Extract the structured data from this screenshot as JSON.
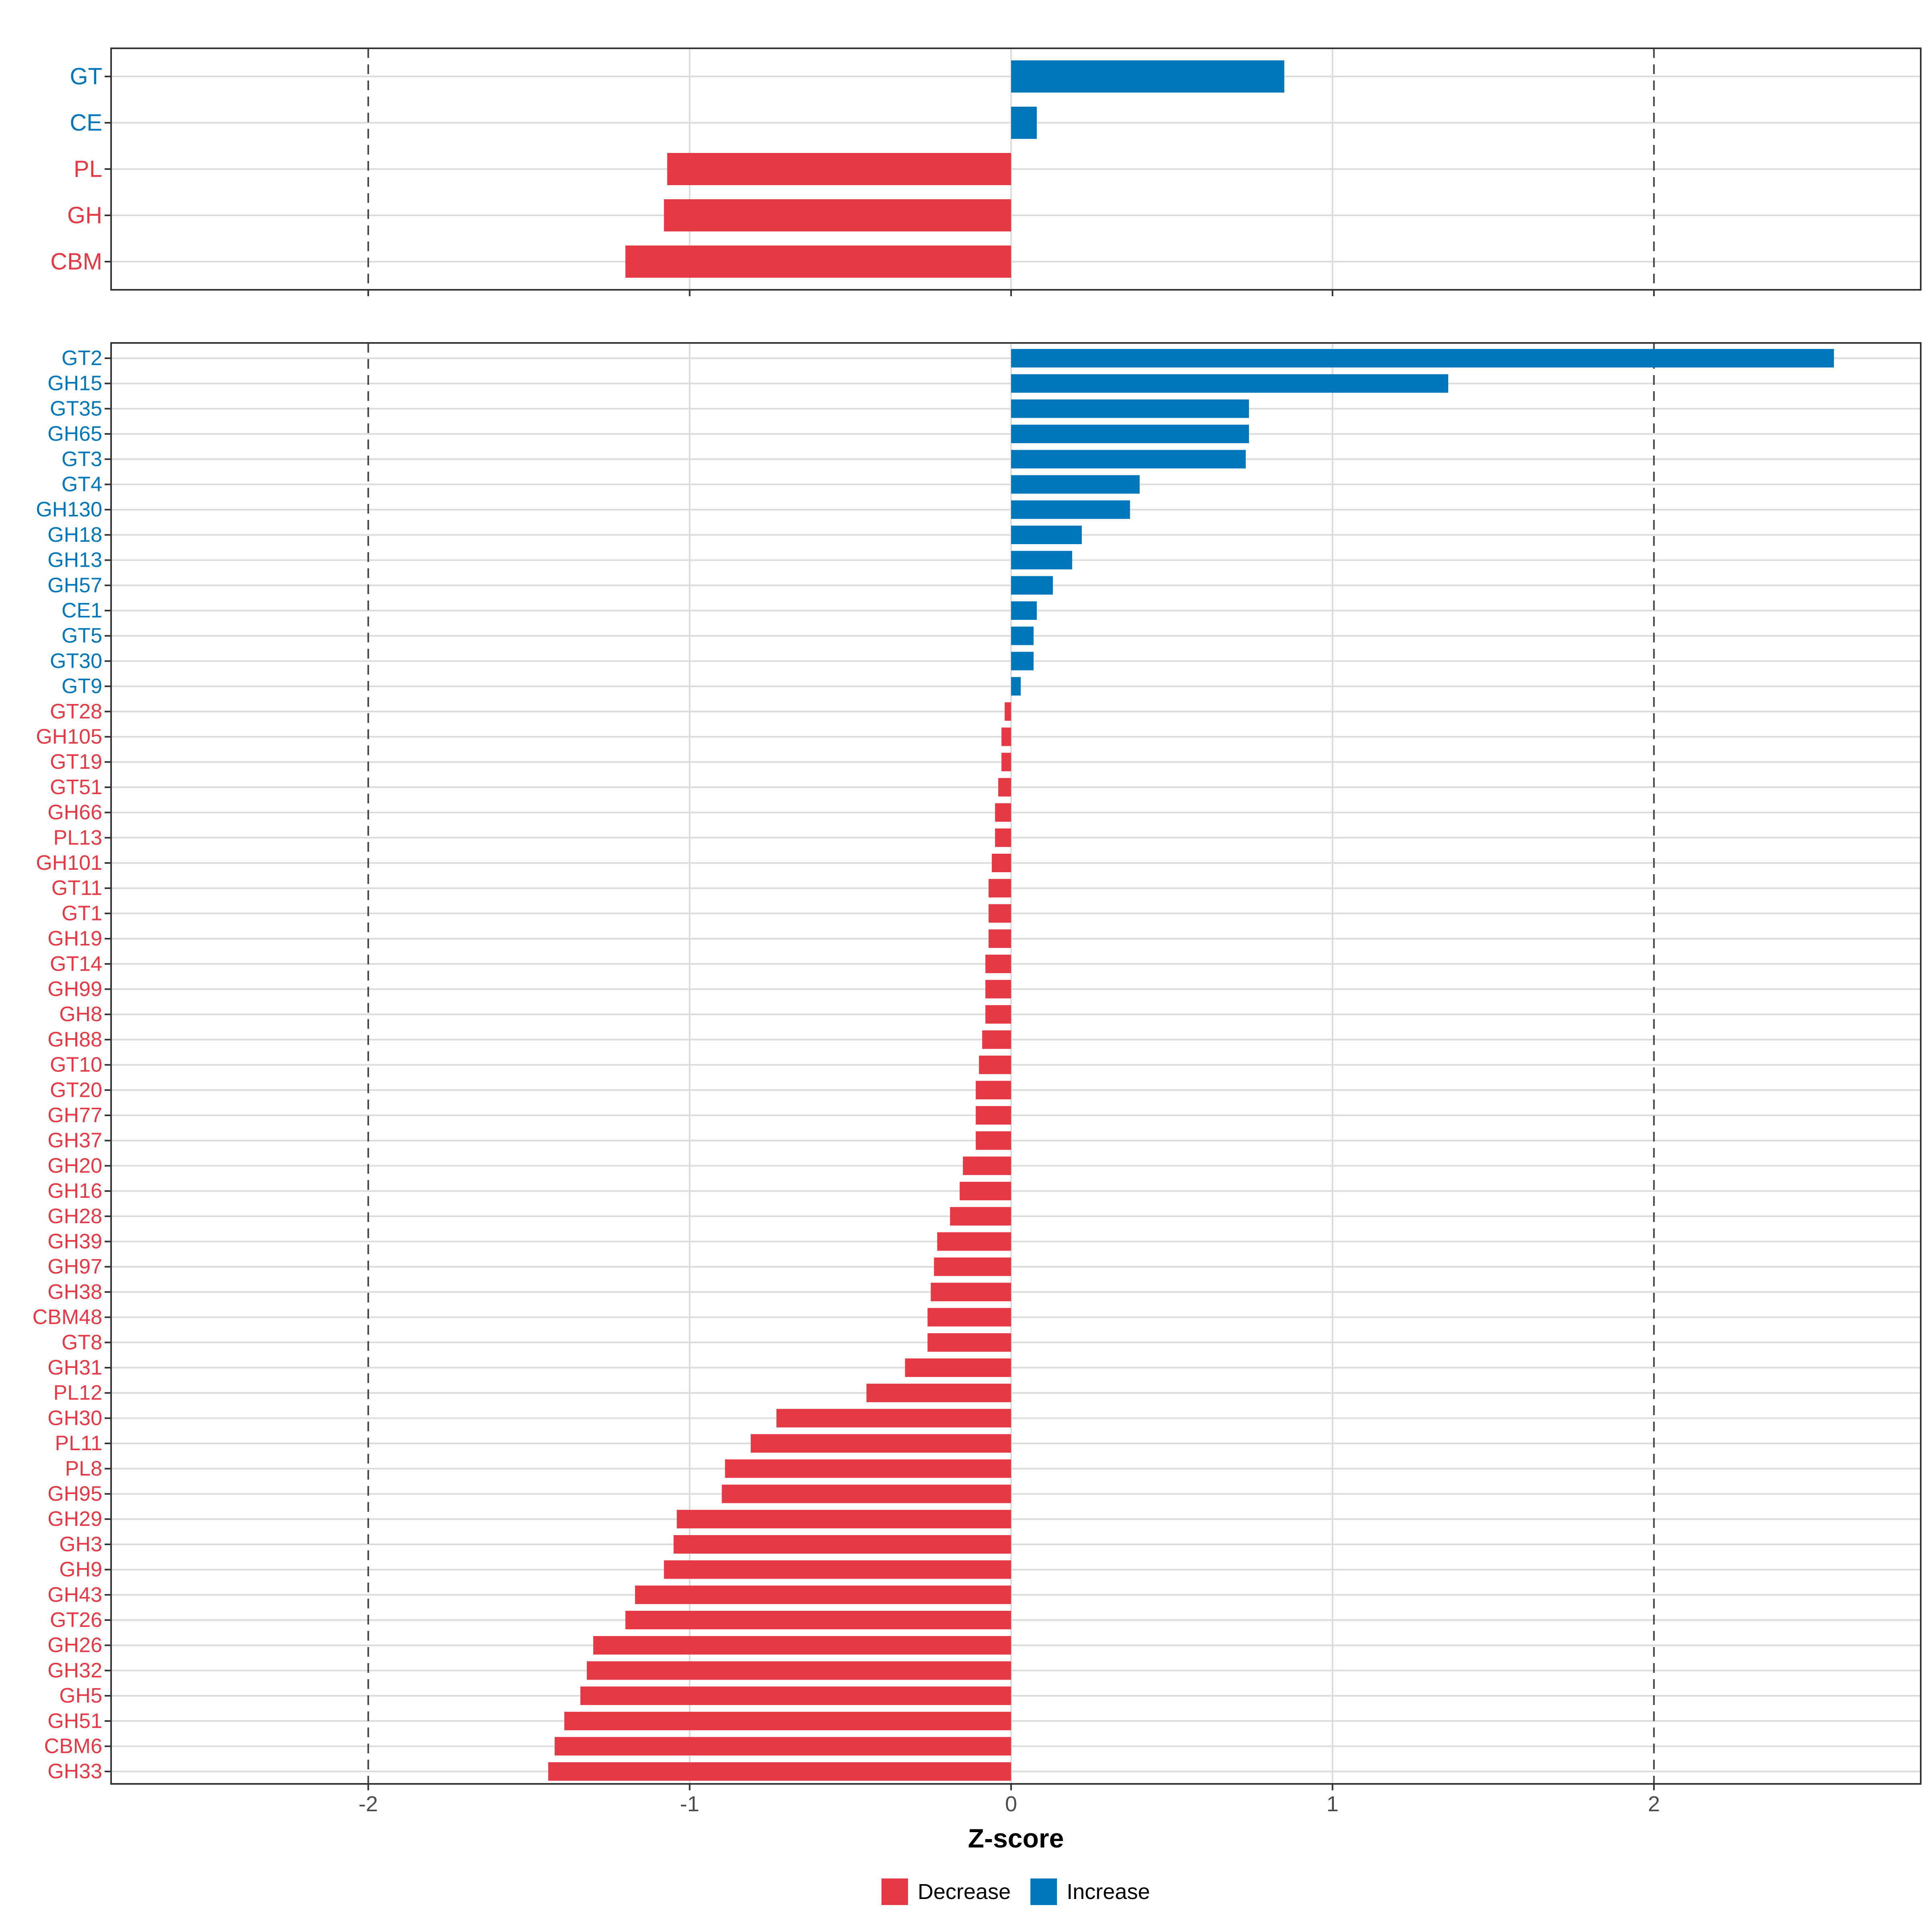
{
  "colors": {
    "decrease": "#E63946",
    "increase": "#0077BB",
    "grid": "#DCDCDC",
    "axis": "#333333",
    "tick_text": "#4D4D4D"
  },
  "chart_data": [
    {
      "type": "bar",
      "orientation": "horizontal",
      "panel": "top",
      "xlim": [
        -2.8,
        2.83
      ],
      "reference_lines": [
        -2,
        2
      ],
      "categories": [
        "GT",
        "CE",
        "PL",
        "GH",
        "CBM"
      ],
      "values": [
        0.85,
        0.08,
        -1.07,
        -1.08,
        -1.2
      ]
    },
    {
      "type": "bar",
      "orientation": "horizontal",
      "panel": "bottom",
      "xlim": [
        -2.8,
        2.83
      ],
      "reference_lines": [
        -2,
        2
      ],
      "categories": [
        "GT2",
        "GH15",
        "GT35",
        "GH65",
        "GT3",
        "GT4",
        "GH130",
        "GH18",
        "GH13",
        "GH57",
        "CE1",
        "GT5",
        "GT30",
        "GT9",
        "GT28",
        "GH105",
        "GT19",
        "GT51",
        "GH66",
        "PL13",
        "GH101",
        "GT11",
        "GT1",
        "GH19",
        "GT14",
        "GH99",
        "GH8",
        "GH88",
        "GT10",
        "GT20",
        "GH77",
        "GH37",
        "GH20",
        "GH16",
        "GH28",
        "GH39",
        "GH97",
        "GH38",
        "CBM48",
        "GT8",
        "GH31",
        "PL12",
        "GH30",
        "PL11",
        "PL8",
        "GH95",
        "GH29",
        "GH3",
        "GH9",
        "GH43",
        "GT26",
        "GH26",
        "GH32",
        "GH5",
        "GH51",
        "CBM6",
        "GH33"
      ],
      "values": [
        2.56,
        1.36,
        0.74,
        0.74,
        0.73,
        0.4,
        0.37,
        0.22,
        0.19,
        0.13,
        0.08,
        0.07,
        0.07,
        0.03,
        -0.02,
        -0.03,
        -0.03,
        -0.04,
        -0.05,
        -0.05,
        -0.06,
        -0.07,
        -0.07,
        -0.07,
        -0.08,
        -0.08,
        -0.08,
        -0.09,
        -0.1,
        -0.11,
        -0.11,
        -0.11,
        -0.15,
        -0.16,
        -0.19,
        -0.23,
        -0.24,
        -0.25,
        -0.26,
        -0.26,
        -0.33,
        -0.45,
        -0.73,
        -0.81,
        -0.89,
        -0.9,
        -1.04,
        -1.05,
        -1.08,
        -1.17,
        -1.2,
        -1.3,
        -1.32,
        -1.34,
        -1.39,
        -1.42,
        -1.44
      ],
      "x_ticks": [
        "-2",
        "-1",
        "0",
        "1",
        "2"
      ],
      "x_tick_values": [
        -2,
        -1,
        0,
        1,
        2
      ],
      "xlabel": "Z-score"
    }
  ],
  "legend": {
    "items": [
      {
        "label": "Decrease",
        "color_key": "decrease"
      },
      {
        "label": "Increase",
        "color_key": "increase"
      }
    ]
  }
}
